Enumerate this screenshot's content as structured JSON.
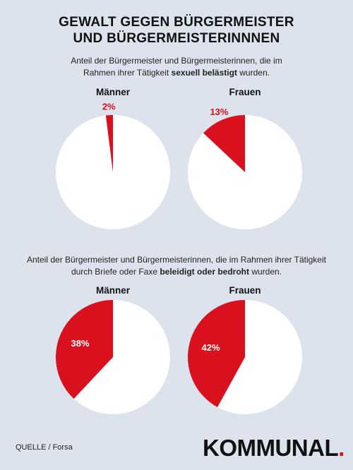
{
  "title_line1": "GEWALT GEGEN BÜRGERMEISTER",
  "title_line2": "UND BÜRGERMEISTERINNNEN",
  "section1": {
    "text_line1": "Anteil der Bürgermeister und Bürgermeisterinnen, die im",
    "text_line2_before": "Rahmen ihrer Tätigkeit ",
    "text_line2_bold": "sexuell belästigt",
    "text_line2_after": " wurden."
  },
  "section2": {
    "text_line1": "Anteil der Bürgermeister und Bürgermeisterinnen, die im Rahmen ihrer Tätigkeit",
    "text_line2_before": "durch Briefe oder Faxe ",
    "text_line2_bold": "beleidigt oder bedroht",
    "text_line2_after": " wurden."
  },
  "colors": {
    "slice": "#d9101e",
    "rest": "#ffffff",
    "background": "#dce3ed"
  },
  "chart_data": [
    {
      "type": "pie",
      "title": "Männer",
      "values": [
        2,
        98
      ],
      "labels": [
        "2%",
        ""
      ]
    },
    {
      "type": "pie",
      "title": "Frauen",
      "values": [
        13,
        87
      ],
      "labels": [
        "13%",
        ""
      ]
    },
    {
      "type": "pie",
      "title": "Männer",
      "values": [
        38,
        62
      ],
      "labels": [
        "38%",
        ""
      ]
    },
    {
      "type": "pie",
      "title": "Frauen",
      "values": [
        42,
        58
      ],
      "labels": [
        "42%",
        ""
      ]
    }
  ],
  "source_label": "QUELLE / Forsa",
  "logo_text": "KOMMUNAL",
  "logo_dot": "."
}
